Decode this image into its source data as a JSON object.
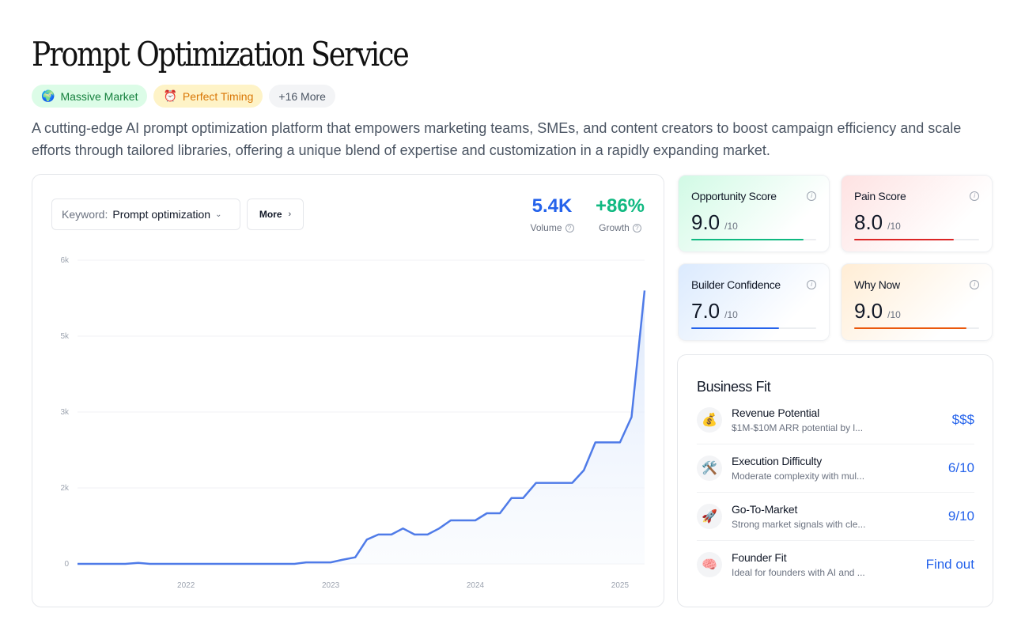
{
  "title": "Prompt Optimization Service",
  "tags": [
    {
      "emoji": "🌍",
      "label": "Massive Market"
    },
    {
      "emoji": "⏰",
      "label": "Perfect Timing"
    },
    {
      "emoji": "",
      "label": "+16 More"
    }
  ],
  "description": "A cutting-edge AI prompt optimization platform that empowers marketing teams, SMEs, and content creators to boost campaign efficiency and scale efforts through tailored libraries, offering a unique blend of expertise and customization in a rapidly expanding market.",
  "keyword": {
    "label": "Keyword:",
    "value": "Prompt optimization"
  },
  "more_button": "More",
  "metrics": {
    "volume": {
      "value": "5.4K",
      "label": "Volume"
    },
    "growth": {
      "value": "+86%",
      "label": "Growth"
    }
  },
  "chart_data": {
    "type": "area",
    "y_ticks": [
      {
        "label": "6k",
        "value": 6000
      },
      {
        "label": "5k",
        "value": 4500
      },
      {
        "label": "3k",
        "value": 3000
      },
      {
        "label": "2k",
        "value": 1500
      },
      {
        "label": "0",
        "value": 0
      }
    ],
    "x_ticks": [
      {
        "label": "2022",
        "value": 2022.0
      },
      {
        "label": "2023",
        "value": 2023.0
      },
      {
        "label": "2024",
        "value": 2024.0
      },
      {
        "label": "2025",
        "value": 2025.0
      }
    ],
    "ylim": [
      0,
      6000
    ],
    "xlim": [
      2021.25,
      2025.17
    ],
    "line_color": "#4f7be8",
    "x": [
      2021.25,
      2021.33,
      2021.42,
      2021.5,
      2021.58,
      2021.67,
      2021.75,
      2021.83,
      2021.92,
      2022.0,
      2022.08,
      2022.17,
      2022.25,
      2022.33,
      2022.42,
      2022.5,
      2022.58,
      2022.67,
      2022.75,
      2022.83,
      2022.92,
      2023.0,
      2023.08,
      2023.17,
      2023.25,
      2023.33,
      2023.42,
      2023.5,
      2023.58,
      2023.67,
      2023.75,
      2023.83,
      2023.92,
      2024.0,
      2024.08,
      2024.17,
      2024.25,
      2024.33,
      2024.42,
      2024.5,
      2024.58,
      2024.67,
      2024.75,
      2024.83,
      2024.92,
      2025.0,
      2025.08,
      2025.17
    ],
    "y": [
      0,
      0,
      0,
      0,
      0,
      20,
      0,
      0,
      0,
      0,
      0,
      0,
      0,
      0,
      0,
      0,
      0,
      0,
      0,
      30,
      30,
      30,
      80,
      130,
      480,
      580,
      580,
      700,
      580,
      580,
      700,
      860,
      860,
      860,
      1000,
      1000,
      1300,
      1300,
      1600,
      1600,
      1600,
      1600,
      1850,
      2400,
      2400,
      2400,
      2900,
      5400
    ]
  },
  "scores": [
    {
      "name": "Opportunity Score",
      "value": "9.0",
      "max": "/10",
      "fraction": 0.9,
      "color": "#10b981"
    },
    {
      "name": "Pain Score",
      "value": "8.0",
      "max": "/10",
      "fraction": 0.8,
      "color": "#dc2626"
    },
    {
      "name": "Builder Confidence",
      "value": "7.0",
      "max": "/10",
      "fraction": 0.7,
      "color": "#2563eb"
    },
    {
      "name": "Why Now",
      "value": "9.0",
      "max": "/10",
      "fraction": 0.9,
      "color": "#ea580c"
    }
  ],
  "business_fit": {
    "title": "Business Fit",
    "rows": [
      {
        "icon": "💰",
        "icon_name": "money-bag-icon",
        "name": "Revenue Potential",
        "sub": "$1M-$10M ARR potential by l...",
        "value": "$$$"
      },
      {
        "icon": "🛠️",
        "icon_name": "tools-icon",
        "name": "Execution Difficulty",
        "sub": "Moderate complexity with mul...",
        "value": "6/10"
      },
      {
        "icon": "🚀",
        "icon_name": "rocket-icon",
        "name": "Go-To-Market",
        "sub": "Strong market signals with cle...",
        "value": "9/10"
      },
      {
        "icon": "🧠",
        "icon_name": "brain-icon",
        "name": "Founder Fit",
        "sub": "Ideal for founders with AI and ...",
        "value": "Find out"
      }
    ]
  }
}
